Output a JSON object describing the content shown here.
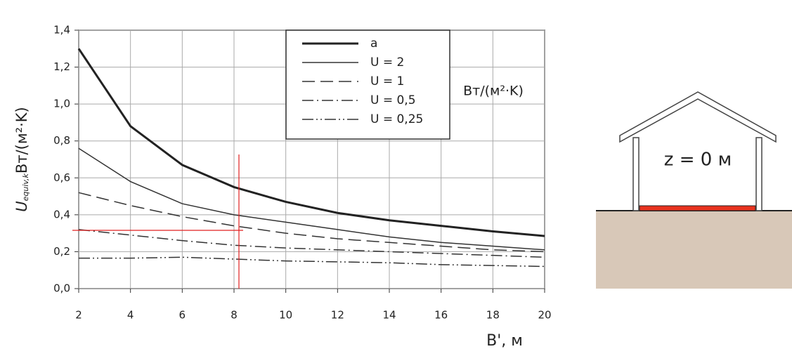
{
  "chart_data": {
    "type": "line",
    "x_label": "B', м",
    "y_label": {
      "symbol": "U",
      "subscript": "equiv,k",
      "unit": "Вт/(м²·K)"
    },
    "legend_unit": "Вт/(м²·K)",
    "x": [
      2,
      4,
      6,
      8,
      10,
      12,
      14,
      16,
      18,
      20
    ],
    "series": [
      {
        "name": "a",
        "color": "#222222",
        "linewidth": 3,
        "dash": "solid",
        "values": [
          1.3,
          0.88,
          0.67,
          0.55,
          0.47,
          0.41,
          0.37,
          0.34,
          0.31,
          0.285
        ]
      },
      {
        "name": "U = 2",
        "color": "#333333",
        "linewidth": 1.5,
        "dash": "solid",
        "values": [
          0.76,
          0.58,
          0.46,
          0.4,
          0.36,
          0.32,
          0.28,
          0.25,
          0.23,
          0.21
        ]
      },
      {
        "name": "U = 1",
        "color": "#333333",
        "linewidth": 1.5,
        "dash": "dashed",
        "values": [
          0.52,
          0.45,
          0.39,
          0.34,
          0.3,
          0.27,
          0.25,
          0.23,
          0.21,
          0.2
        ]
      },
      {
        "name": "U = 0,5",
        "color": "#333333",
        "linewidth": 1.5,
        "dash": "dashdot",
        "values": [
          0.32,
          0.29,
          0.26,
          0.235,
          0.22,
          0.21,
          0.2,
          0.19,
          0.18,
          0.17
        ]
      },
      {
        "name": "U = 0,25",
        "color": "#333333",
        "linewidth": 1.5,
        "dash": "dashdotdot",
        "values": [
          0.165,
          0.165,
          0.17,
          0.16,
          0.15,
          0.145,
          0.14,
          0.13,
          0.125,
          0.12
        ]
      }
    ],
    "xlim": [
      2,
      20
    ],
    "ylim": [
      0,
      1.4
    ],
    "xticks": [
      2,
      4,
      6,
      8,
      10,
      12,
      14,
      16,
      18,
      20
    ],
    "yticks": [
      {
        "value": 0,
        "label": "0,0"
      },
      {
        "value": 0.2,
        "label": "0,2"
      },
      {
        "value": 0.4,
        "label": "0,4"
      },
      {
        "value": 0.6,
        "label": "0,6"
      },
      {
        "value": 0.8,
        "label": "0,8"
      },
      {
        "value": 1.0,
        "label": "1,0"
      },
      {
        "value": 1.2,
        "label": "1,2"
      },
      {
        "value": 1.4,
        "label": "1,4"
      }
    ],
    "grid": true
  },
  "diagram": {
    "label": "z = 0 м"
  }
}
